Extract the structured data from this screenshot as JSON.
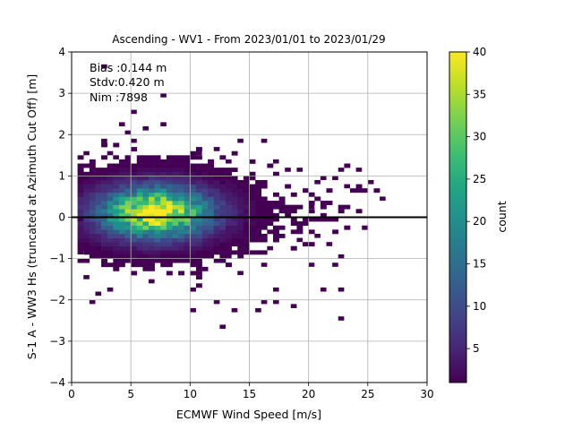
{
  "chart_data": {
    "type": "heatmap",
    "title": "Ascending - WV1 - From 2023/01/01 to 2023/01/29",
    "xlabel": "ECMWF Wind Speed [m/s]",
    "ylabel": "S-1 A - WW3 Hs (truncated at Azimuth Cut Off) [m]",
    "xlim": [
      0,
      30
    ],
    "ylim": [
      -4,
      4
    ],
    "xticks": [
      "0",
      "5",
      "10",
      "15",
      "20",
      "25",
      "30"
    ],
    "yticks": [
      "−4",
      "−3",
      "−2",
      "−1",
      "0",
      "1",
      "2",
      "3",
      "4"
    ],
    "grid": true,
    "bin_size": {
      "x": 0.5,
      "y": 0.1
    },
    "reference_line": {
      "y": 0,
      "color": "#000000"
    },
    "annotations": [
      "Bias :0.144 m",
      "Stdv:0.420 m",
      "Nim :7898"
    ],
    "colorbar": {
      "label": "count",
      "colormap": "viridis",
      "min": 1,
      "max": 40,
      "ticks": [
        "5",
        "10",
        "15",
        "20",
        "25",
        "30",
        "35",
        "40"
      ]
    },
    "density": {
      "center_x": 7.0,
      "center_y": 0.12,
      "sigma_x": 3.2,
      "sigma_y": 0.42,
      "peak_count": 40,
      "x_range": [
        0.5,
        26
      ],
      "y_range": [
        -2.7,
        3.0
      ]
    },
    "sparse_points": [
      [
        2.8,
        3.6
      ],
      [
        7.9,
        2.95
      ],
      [
        5.0,
        2.5
      ],
      [
        7.8,
        2.25
      ],
      [
        6.0,
        2.1
      ],
      [
        5.2,
        1.8
      ],
      [
        14.2,
        1.8
      ],
      [
        16.0,
        1.8
      ],
      [
        2.9,
        1.9
      ],
      [
        4.0,
        2.3
      ],
      [
        12.2,
        1.6
      ],
      [
        3.0,
        1.5
      ],
      [
        9.7,
        1.2
      ],
      [
        11.6,
        1.4
      ],
      [
        22.7,
        1.1
      ],
      [
        24.4,
        1.1
      ],
      [
        25.1,
        0.85
      ],
      [
        23.3,
        0.75
      ],
      [
        20.9,
        0.8
      ],
      [
        21.2,
        0.9
      ],
      [
        20.1,
        0.55
      ],
      [
        22.3,
        0.9
      ],
      [
        20.6,
        -0.5
      ],
      [
        21.8,
        -0.7
      ],
      [
        18.8,
        -0.8
      ],
      [
        16.8,
        -0.8
      ],
      [
        22.6,
        -0.95
      ],
      [
        20.2,
        -1.2
      ],
      [
        22.2,
        -1.2
      ],
      [
        16.2,
        -1.2
      ],
      [
        13.4,
        -1.2
      ],
      [
        10.6,
        -1.3
      ],
      [
        6.5,
        -1.6
      ],
      [
        5.3,
        -1.1
      ],
      [
        3.0,
        -1.8
      ],
      [
        2.1,
        -1.9
      ],
      [
        1.9,
        -2.05
      ],
      [
        10.2,
        -2.3
      ],
      [
        12.2,
        -2.1
      ],
      [
        13.6,
        -2.3
      ],
      [
        16.1,
        -2.1
      ],
      [
        17.4,
        -2.1
      ],
      [
        18.7,
        -2.15
      ],
      [
        15.6,
        -2.3
      ],
      [
        22.6,
        -2.45
      ],
      [
        12.8,
        -2.7
      ],
      [
        17.0,
        -1.8
      ],
      [
        10.4,
        -1.8
      ],
      [
        14.1,
        -1.4
      ],
      [
        13.2,
        -1.0
      ],
      [
        1.2,
        -1.5
      ],
      [
        19.2,
        -0.6
      ],
      [
        22.7,
        -1.8
      ],
      [
        21.3,
        -1.8
      ],
      [
        26.4,
        0.45
      ],
      [
        20.0,
        0.3
      ],
      [
        19.3,
        1.15
      ],
      [
        18.3,
        1.2
      ],
      [
        17.1,
        1.3
      ],
      [
        13.3,
        1.4
      ],
      [
        10.6,
        1.5
      ],
      [
        9.3,
        1.4
      ],
      [
        4.9,
        2.05
      ],
      [
        3.6,
        1.45
      ],
      [
        1.0,
        1.5
      ],
      [
        0.6,
        -0.9
      ],
      [
        0.5,
        -0.1
      ]
    ]
  }
}
